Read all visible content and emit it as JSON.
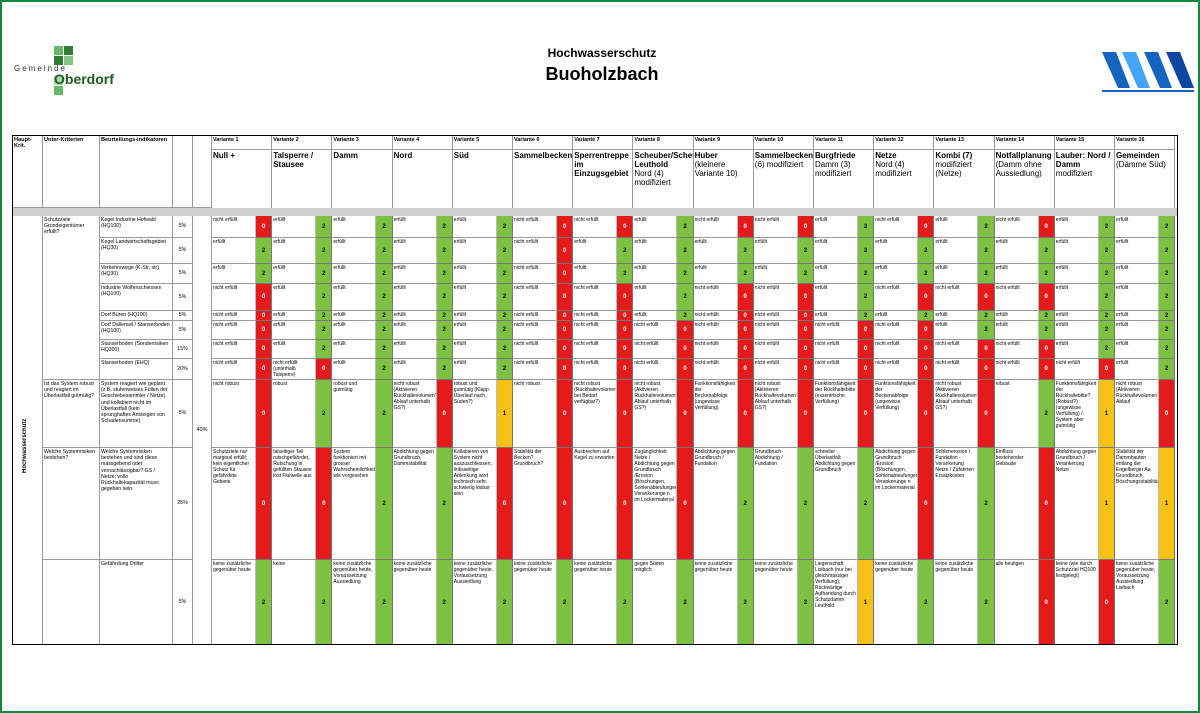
{
  "header": {
    "title": "Hochwasserschutz",
    "subtitle": "Buoholzbach",
    "logo_left": {
      "line1": "Gemeinde",
      "line2": "Oberdorf"
    },
    "logo_right": "wave-logo"
  },
  "colors": {
    "green": "#7cc142",
    "red": "#e31b1b",
    "yellow": "#f5c115",
    "frame": "#0f8a3a"
  },
  "columns": {
    "haupt": "Haupt-Krit.",
    "unter": "Unter-Kriterien",
    "indikator": "Beurteilungs-indikatoren"
  },
  "haupt_kriterium": "Hochwasserschutz",
  "group_weight": "40%",
  "variants": [
    {
      "num": "Variante 1",
      "name": "Null +",
      "sub": ""
    },
    {
      "num": "Variante 2",
      "name": "Talsperre / Stausee",
      "sub": ""
    },
    {
      "num": "Variante 3",
      "name": "Damm",
      "sub": ""
    },
    {
      "num": "Variante 4",
      "name": "Nord",
      "sub": ""
    },
    {
      "num": "Variante 5",
      "name": "Süd",
      "sub": ""
    },
    {
      "num": "Variante 6",
      "name": "Sammelbecken",
      "sub": ""
    },
    {
      "num": "Variante 7",
      "name": "Sperrentreppe im Einzugsgebiet",
      "sub": ""
    },
    {
      "num": "Variante 8",
      "name": "Scheuber/Scheuber-Leuthold",
      "sub": "Nord (4) modifiziert"
    },
    {
      "num": "Variante 9",
      "name": "Huber",
      "sub": "(kleinere Variante 10)"
    },
    {
      "num": "Variante 10",
      "name": "Sammelbecken",
      "sub": "(6) modifiziert"
    },
    {
      "num": "Variante 11",
      "name": "Burgfriede",
      "sub": "Damm (3) modifiziert"
    },
    {
      "num": "Variante 12",
      "name": "Netze",
      "sub": "Nord (4) modifiziert"
    },
    {
      "num": "Variante 13",
      "name": "Kombi (7)",
      "sub": "modifiziert (Netze)"
    },
    {
      "num": "Variante 14",
      "name": "Notfallplanung",
      "sub": "(Damm ohne Aussiedlung)"
    },
    {
      "num": "Variante 15",
      "name": "Lauber: Nord / Damm",
      "sub": "modifiziert"
    },
    {
      "num": "Variante 16",
      "name": "Gemeinden",
      "sub": "(Dämme Süd)"
    }
  ],
  "groups": [
    {
      "label": "Schutzziele Grundeigentümer erfüllt?",
      "rows": [
        0,
        7
      ]
    },
    {
      "label": "Ist das System robust und reagiert im Überlastfall gutmütig?",
      "rows": [
        8,
        8
      ]
    },
    {
      "label": "Welche Systemrisiken bestehen?",
      "rows": [
        9,
        9
      ]
    },
    {
      "label": "",
      "rows": [
        10,
        10
      ]
    }
  ],
  "rows": [
    {
      "ind": "Kegel Industrie Hofwald (HQ100)",
      "w": "5%",
      "cells": [
        [
          "nicht erfüllt",
          "0"
        ],
        [
          "erfüllt",
          "2"
        ],
        [
          "erfüllt",
          "2"
        ],
        [
          "erfüllt",
          "2"
        ],
        [
          "erfüllt",
          "2"
        ],
        [
          "nicht erfüllt",
          "0"
        ],
        [
          "nicht erfüllt",
          "0"
        ],
        [
          "erfüllt",
          "2"
        ],
        [
          "nicht erfüllt",
          "0"
        ],
        [
          "nicht erfüllt",
          "0"
        ],
        [
          "erfüllt",
          "2"
        ],
        [
          "nicht erfüllt",
          "0"
        ],
        [
          "erfüllt",
          "2"
        ],
        [
          "nicht erfüllt",
          "0"
        ],
        [
          "erfüllt",
          "2"
        ],
        [
          "erfüllt",
          "2"
        ]
      ]
    },
    {
      "ind": "Kegel Landwirtschaftsgebiet (HQ30)",
      "w": "5%",
      "cells": [
        [
          "erfüllt",
          "2"
        ],
        [
          "erfüllt",
          "2"
        ],
        [
          "erfüllt",
          "2"
        ],
        [
          "erfüllt",
          "2"
        ],
        [
          "erfüllt",
          "2"
        ],
        [
          "nicht erfüllt",
          "0"
        ],
        [
          "erfüllt",
          "2"
        ],
        [
          "erfüllt",
          "2"
        ],
        [
          "erfüllt",
          "2"
        ],
        [
          "erfüllt",
          "2"
        ],
        [
          "erfüllt",
          "2"
        ],
        [
          "erfüllt",
          "2"
        ],
        [
          "erfüllt",
          "2"
        ],
        [
          "erfüllt",
          "2"
        ],
        [
          "erfüllt",
          "2"
        ],
        [
          "erfüllt",
          "2"
        ]
      ]
    },
    {
      "ind": "Verkehrswege (K-Str, str) (HQ30)",
      "w": "5%",
      "cells": [
        [
          "erfüllt",
          "2"
        ],
        [
          "erfüllt",
          "2"
        ],
        [
          "erfüllt",
          "2"
        ],
        [
          "erfüllt",
          "2"
        ],
        [
          "erfüllt",
          "2"
        ],
        [
          "nicht erfüllt",
          "0"
        ],
        [
          "erfüllt",
          "2"
        ],
        [
          "erfüllt",
          "2"
        ],
        [
          "erfüllt",
          "2"
        ],
        [
          "erfüllt",
          "2"
        ],
        [
          "erfüllt",
          "2"
        ],
        [
          "erfüllt",
          "2"
        ],
        [
          "erfüllt",
          "2"
        ],
        [
          "erfüllt",
          "2"
        ],
        [
          "erfüllt",
          "2"
        ],
        [
          "erfüllt",
          "2"
        ]
      ]
    },
    {
      "ind": "Industrie Wolfenschiessen (HQ100)",
      "w": "5%",
      "cells": [
        [
          "nicht erfüllt",
          "0"
        ],
        [
          "erfüllt",
          "2"
        ],
        [
          "erfüllt",
          "2"
        ],
        [
          "erfüllt",
          "2"
        ],
        [
          "erfüllt",
          "2"
        ],
        [
          "nicht erfüllt",
          "0"
        ],
        [
          "nicht erfüllt",
          "0"
        ],
        [
          "erfüllt",
          "2"
        ],
        [
          "nicht erfüllt",
          "0"
        ],
        [
          "nicht erfüllt",
          "0"
        ],
        [
          "erfüllt",
          "2"
        ],
        [
          "nicht erfüllt",
          "0"
        ],
        [
          "nicht erfüllt",
          "0"
        ],
        [
          "nicht erfüllt",
          "0"
        ],
        [
          "erfüllt",
          "2"
        ],
        [
          "erfüllt",
          "2"
        ]
      ]
    },
    {
      "ind": "Dorf Büren (HQ100)",
      "w": "5%",
      "cells": [
        [
          "nicht erfüllt",
          "0"
        ],
        [
          "erfüllt",
          "2"
        ],
        [
          "erfüllt",
          "2"
        ],
        [
          "erfüllt",
          "2"
        ],
        [
          "erfüllt",
          "2"
        ],
        [
          "nicht erfüllt",
          "0"
        ],
        [
          "nicht erfüllt",
          "0"
        ],
        [
          "erfüllt",
          "2"
        ],
        [
          "nicht erfüllt",
          "0"
        ],
        [
          "nicht erfüllt",
          "0"
        ],
        [
          "erfüllt",
          "2"
        ],
        [
          "erfüllt",
          "2"
        ],
        [
          "erfüllt",
          "2"
        ],
        [
          "erfüllt",
          "2"
        ],
        [
          "erfüllt",
          "2"
        ],
        [
          "erfüllt",
          "2"
        ]
      ]
    },
    {
      "ind": "Dorf Dallenwil / Stanserboden (HQ100)",
      "w": "5%",
      "cells": [
        [
          "nicht erfüllt",
          "0"
        ],
        [
          "erfüllt",
          "2"
        ],
        [
          "erfüllt",
          "2"
        ],
        [
          "erfüllt",
          "2"
        ],
        [
          "erfüllt",
          "2"
        ],
        [
          "nicht erfüllt",
          "0"
        ],
        [
          "nicht erfüllt",
          "0"
        ],
        [
          "nicht erfüllt",
          "0"
        ],
        [
          "nicht erfüllt",
          "0"
        ],
        [
          "nicht erfüllt",
          "0"
        ],
        [
          "nicht erfüllt",
          "0"
        ],
        [
          "nicht erfüllt",
          "0"
        ],
        [
          "erfüllt",
          "2"
        ],
        [
          "erfüllt",
          "2"
        ],
        [
          "erfüllt",
          "2"
        ],
        [
          "erfüllt",
          "2"
        ]
      ]
    },
    {
      "ind": "Stanserboden (Sonderrisiken HQ300)",
      "w": "15%",
      "cells": [
        [
          "nicht erfüllt",
          "0"
        ],
        [
          "erfüllt",
          "2"
        ],
        [
          "erfüllt",
          "2"
        ],
        [
          "erfüllt",
          "2"
        ],
        [
          "erfüllt",
          "2"
        ],
        [
          "nicht erfüllt",
          "0"
        ],
        [
          "nicht erfüllt",
          "0"
        ],
        [
          "nicht erfüllt",
          "0"
        ],
        [
          "nicht erfüllt",
          "0"
        ],
        [
          "nicht erfüllt",
          "0"
        ],
        [
          "nicht erfüllt",
          "0"
        ],
        [
          "nicht erfüllt",
          "0"
        ],
        [
          "nicht erfüllt",
          "0"
        ],
        [
          "nicht erfüllt",
          "0"
        ],
        [
          "erfüllt",
          "2"
        ],
        [
          "erfüllt",
          "2"
        ]
      ]
    },
    {
      "ind": "Stanserboden (EHQ)",
      "w": "20%",
      "cells": [
        [
          "nicht erfüllt",
          "0"
        ],
        [
          "nicht erfüllt (unterhalb Talsperre)",
          "0"
        ],
        [
          "erfüllt",
          "2"
        ],
        [
          "erfüllt",
          "2"
        ],
        [
          "erfüllt",
          "2"
        ],
        [
          "nicht erfüllt",
          "0"
        ],
        [
          "nicht erfüllt",
          "0"
        ],
        [
          "nicht erfüllt",
          "0"
        ],
        [
          "nicht erfüllt",
          "0"
        ],
        [
          "nicht erfüllt",
          "0"
        ],
        [
          "nicht erfüllt",
          "0"
        ],
        [
          "nicht erfüllt",
          "0"
        ],
        [
          "nicht erfüllt",
          "0"
        ],
        [
          "nicht erfüllt",
          "0"
        ],
        [
          "nicht erfüllt",
          "0"
        ],
        [
          "erfüllt",
          "2"
        ]
      ]
    },
    {
      "ind": "System reagiert wie geplant (z.B. stufenweises Füllen der Geschiebesammler / Netze) und kollabiert nicht im Überlastfall (kein sprunghaftes Ansteigen von Schadensumme)",
      "w": "5%",
      "cells": [
        [
          "nicht robust",
          "0"
        ],
        [
          "robust",
          "2"
        ],
        [
          "robust und gutmütig",
          "2"
        ],
        [
          "nicht robust (Aktivieren Rückhaltevolumen? Ablauf unterhalb GS?)",
          "0"
        ],
        [
          "robust und gutmütig (Klapp Überlauf nach Süden?)",
          "1"
        ],
        [
          "nicht robust",
          "0"
        ],
        [
          "nicht robust (Rückhaltevolumen bei Bedarf verfügbar?)",
          "0"
        ],
        [
          "nicht robust (Aktivieren Rückhaltevolumen? Ablauf unterhalb GS?)",
          "0"
        ],
        [
          "Funktionsfähigkeit der Beckenabfolge (ungewisse Verfüllung)",
          "0"
        ],
        [
          "nicht robust (Aktivieren Rückhaltevolumen? Ablauf unterhalb GS?)",
          "0"
        ],
        [
          "Funktionsfähigkeit der Rückhaltebitte (exzentrische Verfüllung)",
          "0"
        ],
        [
          "Funktionsfähigkeit der Beckenabfolge (ungewisse Verfüllung)",
          "0"
        ],
        [
          "nicht robust (Aktivieren Rückhaltevolumen? Ablauf unterhalb GS?)",
          "0"
        ],
        [
          "robust",
          "2"
        ],
        [
          "Funktionsfähigkeit der Rückhaltebitte? (Robust?) (ungewisse Verfüllung) / System aber gutmütig",
          "1"
        ],
        [
          "nicht robust (Aktivieren Rückhaltevolumen? Ablauf",
          "0"
        ]
      ]
    },
    {
      "ind": "Welche Systemrisiken bestehen und sind diese massgebend oder vernachlässigbar? GS / Netze: volle Rückhaltekapazität muss gegeben sein.",
      "w": "25%",
      "cells": [
        [
          "Schutzziele nur marginal erfüllt; kein eigentlicher Schutz für gefährdete Gebiete",
          "0"
        ],
        [
          "talseitiger Teil rutschgefährdet, Rutschung in gefüllten Stausee löst Flutwelle aus",
          "0"
        ],
        [
          "System funktioniert mit grosser Wahrscheinlichkeit wie vorgesehen",
          "2"
        ],
        [
          "Abdichtung gegen Grundbruch, Dammstabilität",
          "2"
        ],
        [
          "Kollabieren von System nicht auszuschliessen, linksseitige Ablenkung wird technisch sehr schwierig lösbar sein",
          "0"
        ],
        [
          "Stabilität der Becken? Grundbruch?",
          "0"
        ],
        [
          "Ausbrechen auf Kegel zu erwarten",
          "0"
        ],
        [
          "Zugänglichkeit Netze / Abdichtung gegen Grundbruch /Erosion (Böschungen, Sohlenabteufungen), Verankerunge n im Lockermaterial",
          "0"
        ],
        [
          "Abdichtung gegen Grundbruch / Fundation",
          "2"
        ],
        [
          "Grundbruch-Abdichtung / Fundation",
          "2"
        ],
        [
          "schneller Überlastfall; Abdichtung gegen Grundbruch",
          "2"
        ],
        [
          "Abdichtung gegen Grundbruch /Erosion (Böschungen, Sohlenabteufungen), Verankerunge n im Lockermaterial",
          "0"
        ],
        [
          "Sohlenerosion / Fundation - Verankerung Netze / Zufahrten Ersatzkosten",
          "2"
        ],
        [
          "Einfluss bestehender Gebäude",
          "0"
        ],
        [
          "Abdichtung gegen Grundbruch / Verankerung Netze",
          "1"
        ],
        [
          "Stabilität der Dammbauten entlang der Engelberger Aa Grundbruch, Böschungsstabilitäten",
          "1"
        ]
      ]
    },
    {
      "ind": "Gefährdung Dritter",
      "w": "5%",
      "cells": [
        [
          "keine zusätzliche gegenüber heute",
          "2"
        ],
        [
          "keine",
          "2"
        ],
        [
          "keine zusätzliche gegenüber heute, Voraussetzung Aussiedlung",
          "2"
        ],
        [
          "keine zusätzliche gegenüber heute",
          "2"
        ],
        [
          "keine zusätzliche gegenüber heute, Voraussetzung Aussiedlung",
          "2"
        ],
        [
          "keine zusätzliche gegenüber heute",
          "2"
        ],
        [
          "keine zusätzliche gegenüber heute",
          "2"
        ],
        [
          "gegen Süden möglich",
          "2"
        ],
        [
          "keine zusätzliche gegenüber heute",
          "2"
        ],
        [
          "keine zusätzliche gegenüber heute",
          "2"
        ],
        [
          "Liegenschaft Lisibach (nur bei gleichmässiger Verfüllung); Rückwärtige Aufhandung durch Schutzdamm Leuthold",
          "1"
        ],
        [
          "keine zusätzliche gegenüber heute",
          "2"
        ],
        [
          "keine zusätzliche gegenüber heute",
          "2"
        ],
        [
          "alle heutigen",
          "0"
        ],
        [
          "keine (wie durch Schutzziel HQ100 festgelegt)",
          "0"
        ],
        [
          "keine zusätzliche gegenüber heute, Voraussetzung Aussiedlung Lisibach",
          "2"
        ]
      ]
    }
  ]
}
